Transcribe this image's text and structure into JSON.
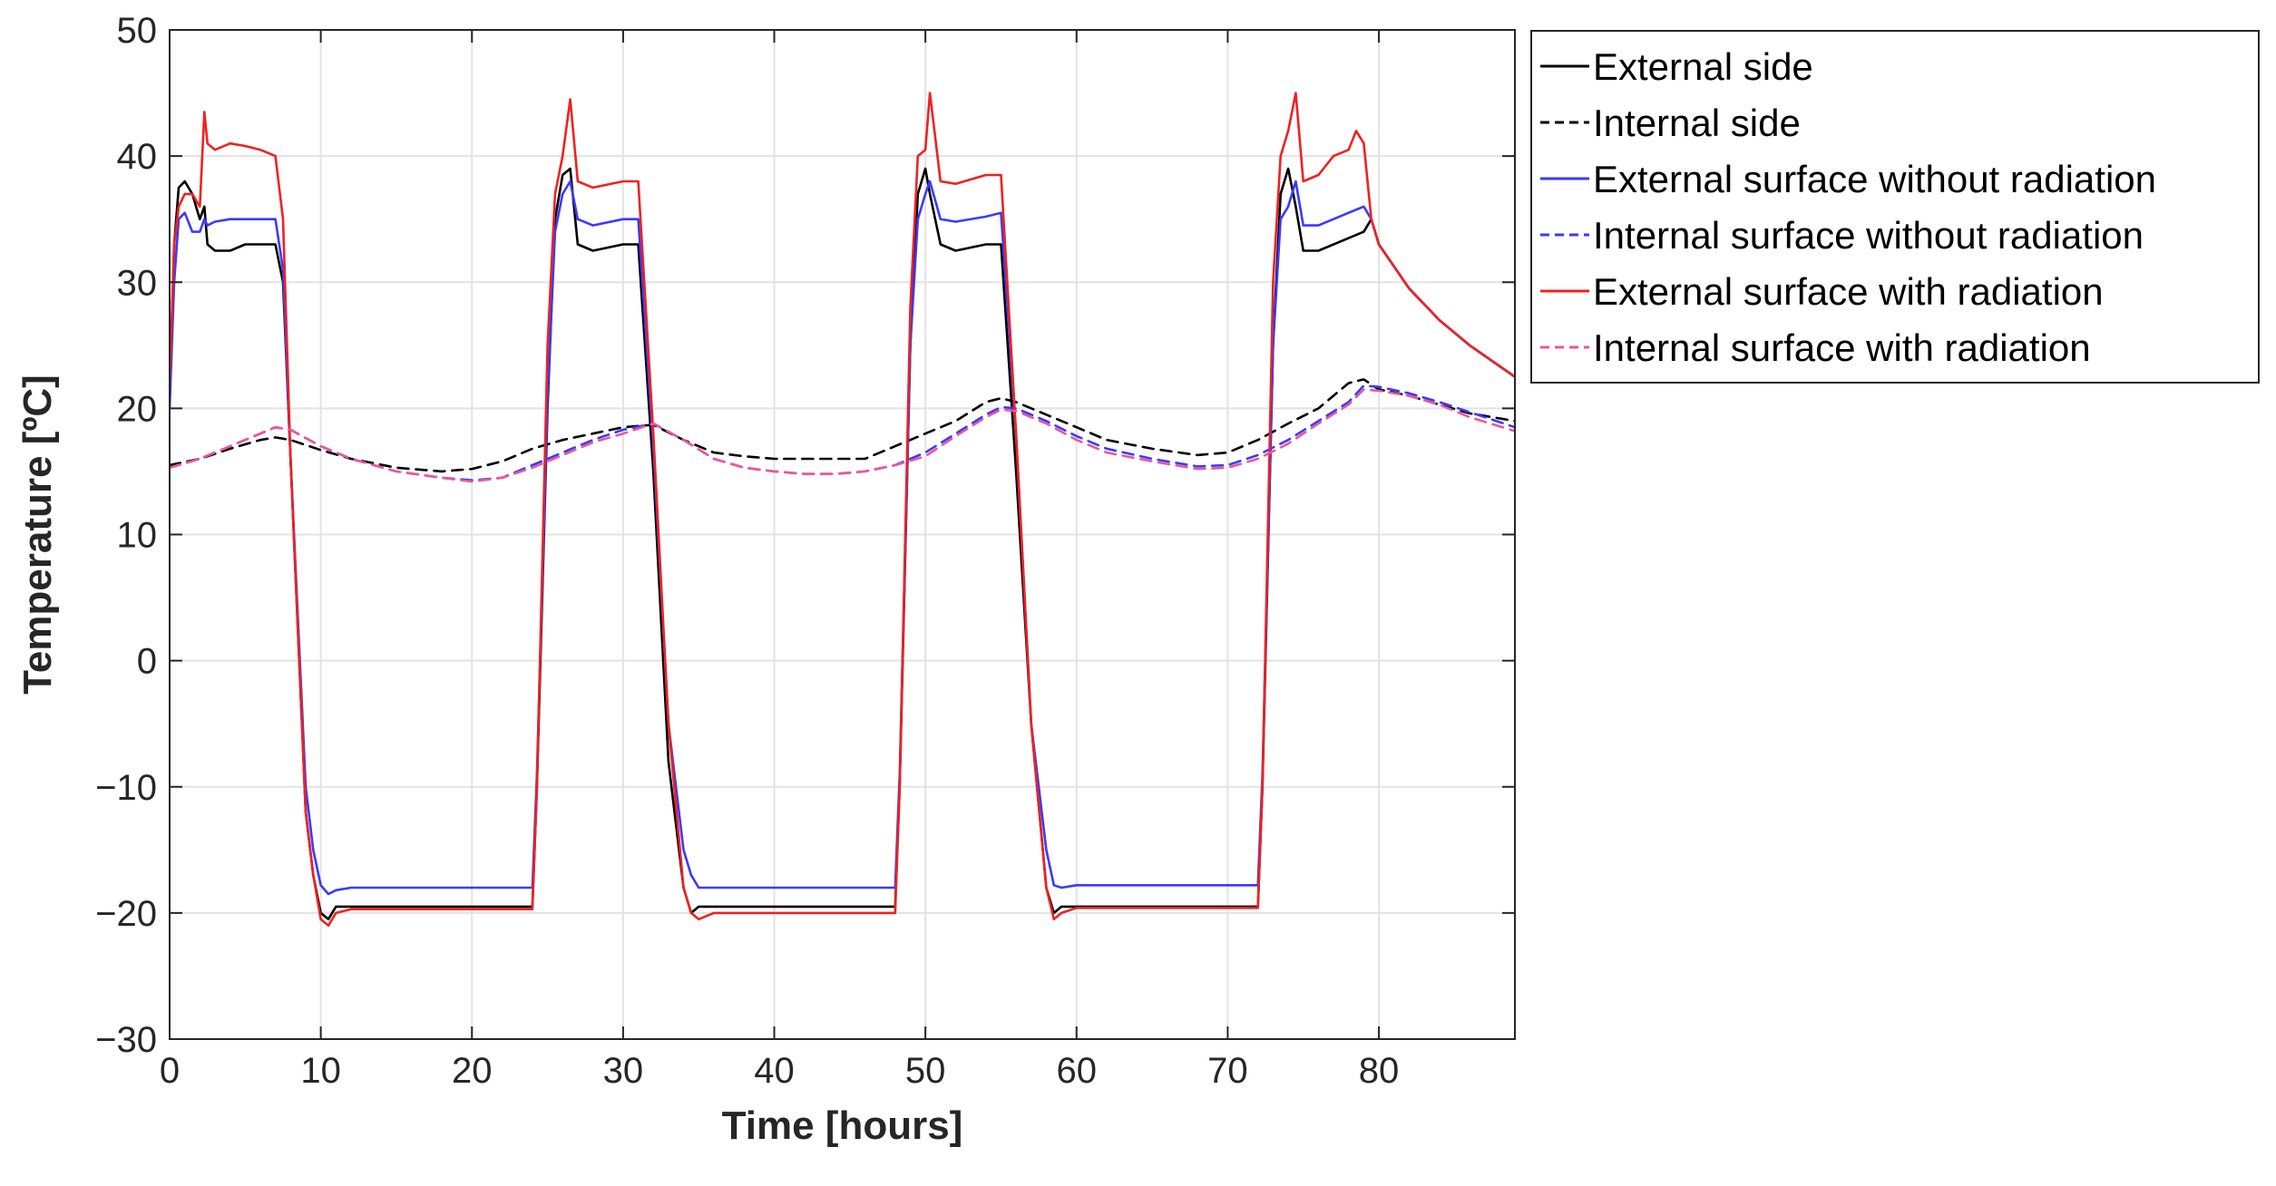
{
  "chart_data": {
    "type": "line",
    "title": "",
    "xlabel": "Time [hours]",
    "ylabel": "Temperature [ºC]",
    "xlim": [
      0,
      89
    ],
    "ylim": [
      -30,
      50
    ],
    "xticks": [
      0,
      10,
      20,
      30,
      40,
      50,
      60,
      70,
      80
    ],
    "yticks": [
      -30,
      -20,
      -10,
      0,
      10,
      20,
      30,
      40,
      50
    ],
    "xtick_labels": [
      "0",
      "10",
      "20",
      "30",
      "40",
      "50",
      "60",
      "70",
      "80"
    ],
    "ytick_labels": [
      "−30",
      "−20",
      "−10",
      "0",
      "10",
      "20",
      "30",
      "40",
      "50"
    ],
    "grid": true,
    "legend_position": "outside-top-right",
    "series": [
      {
        "name": "External side",
        "color": "#000000",
        "dash": "solid",
        "x": [
          0,
          0.3,
          0.6,
          1,
          1.5,
          2,
          2.3,
          2.5,
          3,
          4,
          5,
          6,
          7,
          7.5,
          8,
          9,
          9.5,
          10,
          10.5,
          11,
          12,
          15,
          20,
          24,
          24.3,
          25,
          25.5,
          26,
          26.5,
          27,
          28,
          30,
          31,
          32,
          33,
          34,
          34.5,
          35,
          36,
          40,
          45,
          48,
          48.3,
          49,
          49.5,
          50,
          50.3,
          51,
          52,
          54,
          55,
          56,
          57,
          58,
          58.5,
          59,
          60,
          65,
          70,
          72,
          72.3,
          73,
          73.5,
          74,
          74.5,
          75,
          76,
          78,
          79,
          79.5,
          80,
          82,
          84,
          86,
          89
        ],
        "y": [
          21,
          33,
          37.5,
          38,
          37,
          35,
          36,
          33,
          32.5,
          32.5,
          33,
          33,
          33,
          30,
          16,
          -12,
          -17,
          -20,
          -20.5,
          -19.5,
          -19.5,
          -19.5,
          -19.5,
          -19.5,
          -10,
          20,
          35,
          38.5,
          39,
          33,
          32.5,
          33,
          33,
          15,
          -8,
          -18,
          -20,
          -19.5,
          -19.5,
          -19.5,
          -19.5,
          -19.5,
          -10,
          25,
          37,
          39,
          37,
          33,
          32.5,
          33,
          33,
          15,
          -5,
          -18,
          -20,
          -19.5,
          -19.5,
          -19.5,
          -19.5,
          -19.5,
          -10,
          25,
          37,
          39,
          36,
          32.5,
          32.5,
          33.5,
          34,
          35,
          33,
          29.5,
          27,
          25,
          22.5
        ]
      },
      {
        "name": "Internal side",
        "color": "#000000",
        "dash": "dashed",
        "x": [
          0,
          2,
          4,
          6,
          7,
          8,
          10,
          12,
          15,
          18,
          20,
          22,
          24,
          26,
          28,
          30,
          32,
          34,
          36,
          38,
          40,
          42,
          44,
          46,
          48,
          50,
          52,
          54,
          55,
          56,
          58,
          60,
          62,
          65,
          68,
          70,
          72,
          74,
          76,
          78,
          79,
          80,
          82,
          84,
          86,
          89
        ],
        "y": [
          15.5,
          16,
          16.8,
          17.5,
          17.7,
          17.5,
          16.7,
          16,
          15.3,
          15,
          15.2,
          15.8,
          16.8,
          17.5,
          18,
          18.5,
          18.7,
          17.5,
          16.5,
          16.2,
          16,
          16,
          16,
          16,
          17,
          18,
          19,
          20.5,
          20.8,
          20.5,
          19.5,
          18.5,
          17.5,
          16.8,
          16.3,
          16.5,
          17.5,
          18.8,
          20,
          22,
          22.3,
          21.5,
          21,
          20.3,
          19.6,
          19
        ]
      },
      {
        "name": "External surface without radiation",
        "color": "#3a3aff",
        "dash": "solid",
        "x": [
          0,
          0.3,
          0.6,
          1,
          1.5,
          2,
          2.3,
          2.5,
          3,
          4,
          5,
          6,
          7,
          7.5,
          8,
          9,
          9.5,
          10,
          10.5,
          11,
          12,
          15,
          20,
          24,
          24.3,
          25,
          25.5,
          26,
          26.5,
          27,
          28,
          30,
          31,
          32,
          33,
          34,
          34.5,
          35,
          36,
          40,
          45,
          48,
          48.3,
          49,
          49.5,
          50,
          50.3,
          51,
          52,
          54,
          55,
          56,
          57,
          58,
          58.5,
          59,
          60,
          65,
          70,
          72,
          72.3,
          73,
          73.5,
          74,
          74.5,
          75,
          76,
          78,
          79,
          79.5,
          80,
          82,
          84,
          86,
          89
        ],
        "y": [
          20,
          30,
          35,
          35.5,
          34,
          34,
          35,
          34.5,
          34.8,
          35,
          35,
          35,
          35,
          31,
          16,
          -10,
          -15,
          -17.8,
          -18.5,
          -18.2,
          -18,
          -18,
          -18,
          -18,
          -9,
          21,
          34,
          37,
          38,
          35,
          34.5,
          35,
          35,
          17,
          -5,
          -15,
          -17,
          -18,
          -18,
          -18,
          -18,
          -18,
          -9,
          25,
          35,
          37,
          38,
          35,
          34.8,
          35.2,
          35.5,
          18,
          -5,
          -15,
          -17.8,
          -18,
          -17.8,
          -17.8,
          -17.8,
          -17.8,
          -9,
          25,
          35,
          36,
          38,
          34.5,
          34.5,
          35.5,
          36,
          35,
          33,
          29.5,
          27,
          25,
          22.5
        ]
      },
      {
        "name": "Internal surface without radiation",
        "color": "#3a3aff",
        "dash": "dashed",
        "x": [
          0,
          2,
          4,
          6,
          7,
          8,
          10,
          12,
          15,
          18,
          20,
          22,
          24,
          26,
          28,
          30,
          32,
          34,
          36,
          38,
          40,
          42,
          44,
          46,
          48,
          50,
          52,
          54,
          55,
          56,
          58,
          60,
          62,
          65,
          68,
          70,
          72,
          74,
          76,
          78,
          79,
          80,
          82,
          84,
          86,
          89
        ],
        "y": [
          15.3,
          16,
          17,
          18,
          18.5,
          18.3,
          17,
          16,
          15,
          14.5,
          14.3,
          14.5,
          15.5,
          16.5,
          17.5,
          18.3,
          18.8,
          17.5,
          16,
          15.3,
          15,
          14.8,
          14.8,
          15,
          15.5,
          16.5,
          18,
          19.5,
          20.1,
          20,
          19,
          17.8,
          16.8,
          16,
          15.4,
          15.5,
          16.3,
          17.5,
          19,
          20.5,
          21.8,
          21.7,
          21.2,
          20.5,
          19.7,
          18.5
        ]
      },
      {
        "name": "External surface with radiation",
        "color": "#ee2222",
        "dash": "solid",
        "x": [
          0,
          0.3,
          0.6,
          1,
          1.5,
          2,
          2.3,
          2.5,
          3,
          4,
          5,
          6,
          7,
          7.5,
          8,
          9,
          9.5,
          10,
          10.5,
          11,
          12,
          15,
          20,
          24,
          24.3,
          25,
          25.5,
          26,
          26.5,
          27,
          28,
          30,
          31,
          32,
          33,
          34,
          34.5,
          35,
          36,
          40,
          45,
          48,
          48.3,
          49,
          49.5,
          50,
          50.3,
          51,
          52,
          54,
          55,
          56,
          57,
          58,
          58.5,
          59,
          60,
          65,
          70,
          72,
          72.3,
          73,
          73.5,
          74,
          74.5,
          75,
          76,
          77,
          78,
          78.5,
          79,
          79.5,
          80,
          82,
          84,
          86,
          89
        ],
        "y": [
          22,
          33,
          36,
          37,
          37,
          36,
          43.5,
          41,
          40.5,
          41,
          40.8,
          40.5,
          40,
          35,
          16,
          -12,
          -17,
          -20.5,
          -21,
          -20,
          -19.7,
          -19.7,
          -19.7,
          -19.7,
          -10,
          25,
          37,
          40,
          44.5,
          38,
          37.5,
          38,
          38,
          18,
          -5,
          -18,
          -20,
          -20.5,
          -20,
          -20,
          -20,
          -20,
          -10,
          28,
          40,
          40.5,
          45,
          38,
          37.8,
          38.5,
          38.5,
          18,
          -5,
          -18,
          -20.5,
          -20,
          -19.6,
          -19.6,
          -19.6,
          -19.6,
          -10,
          30,
          40,
          42,
          45,
          38,
          38.5,
          40,
          40.5,
          42,
          41,
          35,
          33,
          29.5,
          27,
          25,
          22.5
        ]
      },
      {
        "name": "Internal surface with radiation",
        "color": "#ee5599",
        "dash": "dashed",
        "x": [
          0,
          2,
          4,
          6,
          7,
          8,
          10,
          12,
          15,
          18,
          20,
          22,
          24,
          26,
          28,
          30,
          32,
          34,
          36,
          38,
          40,
          42,
          44,
          46,
          48,
          50,
          52,
          54,
          55,
          56,
          58,
          60,
          62,
          65,
          68,
          70,
          72,
          74,
          76,
          78,
          79,
          80,
          82,
          84,
          86,
          89
        ],
        "y": [
          15.3,
          16,
          17,
          18,
          18.5,
          18.3,
          17,
          16,
          15,
          14.5,
          14.2,
          14.5,
          15.3,
          16.3,
          17.3,
          18,
          18.8,
          17.5,
          16,
          15.3,
          15,
          14.8,
          14.8,
          15,
          15.5,
          16.2,
          17.8,
          19.3,
          19.9,
          19.8,
          18.8,
          17.5,
          16.5,
          15.8,
          15.2,
          15.3,
          16,
          17.2,
          18.8,
          20.3,
          21.5,
          21.4,
          21,
          20.3,
          19.3,
          18.2
        ]
      }
    ]
  }
}
